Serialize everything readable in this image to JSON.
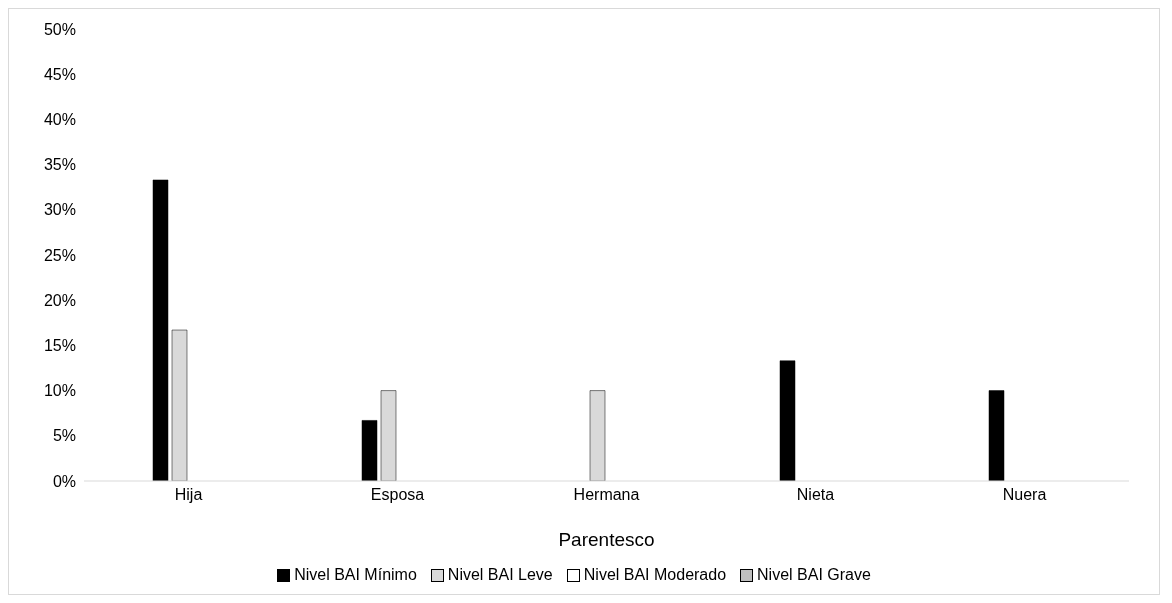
{
  "chart_data": {
    "type": "bar",
    "xlabel": "Parentesco",
    "categories": [
      "Hija",
      "Esposa",
      "Hermana",
      "Nieta",
      "Nuera"
    ],
    "series": [
      {
        "name": "Nivel BAI Mínimo",
        "color": "#000000",
        "values": [
          33.3,
          6.7,
          0,
          13.3,
          10
        ]
      },
      {
        "name": "Nivel BAI Leve",
        "color": "#d9d9d9",
        "values": [
          16.7,
          10,
          10,
          0,
          0
        ]
      },
      {
        "name": "Nivel BAI Moderado",
        "color": "#ffffff",
        "values": [
          0,
          0,
          0,
          0,
          0
        ]
      },
      {
        "name": "Nivel BAI Grave",
        "color": "#bfbfbf",
        "values": [
          0,
          0,
          0,
          0,
          0
        ]
      }
    ],
    "ylim": [
      0,
      50
    ],
    "yticks": [
      {
        "value": 0,
        "label": "0%"
      },
      {
        "value": 5,
        "label": "5%"
      },
      {
        "value": 10,
        "label": "10%"
      },
      {
        "value": 15,
        "label": "15%"
      },
      {
        "value": 20,
        "label": "20%"
      },
      {
        "value": 25,
        "label": "25%"
      },
      {
        "value": 30,
        "label": "30%"
      },
      {
        "value": 35,
        "label": "35%"
      },
      {
        "value": 40,
        "label": "40%"
      },
      {
        "value": 45,
        "label": "45%"
      },
      {
        "value": 50,
        "label": "50%"
      }
    ],
    "grid": false,
    "legend": "bottom"
  }
}
